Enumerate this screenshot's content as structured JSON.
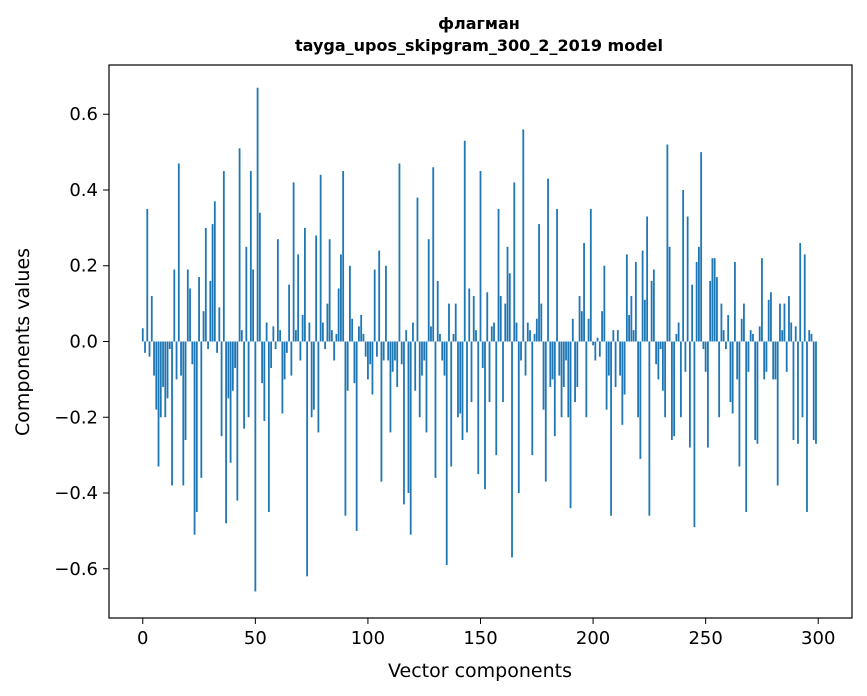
{
  "chart_data": {
    "type": "bar",
    "title": "флагман",
    "subtitle": "tayga_upos_skipgram_300_2_2019 model",
    "xlabel": "Vector components",
    "ylabel": "Components values",
    "xlim": [
      -15,
      315
    ],
    "ylim": [
      -0.73,
      0.73
    ],
    "xticks": [
      0,
      50,
      100,
      150,
      200,
      250,
      300
    ],
    "xtick_labels": [
      "0",
      "50",
      "100",
      "150",
      "200",
      "250",
      "300"
    ],
    "yticks": [
      -0.6,
      -0.4,
      -0.2,
      0.0,
      0.2,
      0.4,
      0.6
    ],
    "ytick_labels": [
      "−0.6",
      "−0.4",
      "−0.2",
      "0.0",
      "0.2",
      "0.4",
      "0.6"
    ],
    "grid": false,
    "legend": "none",
    "bar_color": "#1f77b4",
    "x": [
      0,
      1,
      2,
      3,
      4,
      5,
      6,
      7,
      8,
      9,
      10,
      11,
      12,
      13,
      14,
      15,
      16,
      17,
      18,
      19,
      20,
      21,
      22,
      23,
      24,
      25,
      26,
      27,
      28,
      29,
      30,
      31,
      32,
      33,
      34,
      35,
      36,
      37,
      38,
      39,
      40,
      41,
      42,
      43,
      44,
      45,
      46,
      47,
      48,
      49,
      50,
      51,
      52,
      53,
      54,
      55,
      56,
      57,
      58,
      59,
      60,
      61,
      62,
      63,
      64,
      65,
      66,
      67,
      68,
      69,
      70,
      71,
      72,
      73,
      74,
      75,
      76,
      77,
      78,
      79,
      80,
      81,
      82,
      83,
      84,
      85,
      86,
      87,
      88,
      89,
      90,
      91,
      92,
      93,
      94,
      95,
      96,
      97,
      98,
      99,
      100,
      101,
      102,
      103,
      104,
      105,
      106,
      107,
      108,
      109,
      110,
      111,
      112,
      113,
      114,
      115,
      116,
      117,
      118,
      119,
      120,
      121,
      122,
      123,
      124,
      125,
      126,
      127,
      128,
      129,
      130,
      131,
      132,
      133,
      134,
      135,
      136,
      137,
      138,
      139,
      140,
      141,
      142,
      143,
      144,
      145,
      146,
      147,
      148,
      149,
      150,
      151,
      152,
      153,
      154,
      155,
      156,
      157,
      158,
      159,
      160,
      161,
      162,
      163,
      164,
      165,
      166,
      167,
      168,
      169,
      170,
      171,
      172,
      173,
      174,
      175,
      176,
      177,
      178,
      179,
      180,
      181,
      182,
      183,
      184,
      185,
      186,
      187,
      188,
      189,
      190,
      191,
      192,
      193,
      194,
      195,
      196,
      197,
      198,
      199,
      200,
      201,
      202,
      203,
      204,
      205,
      206,
      207,
      208,
      209,
      210,
      211,
      212,
      213,
      214,
      215,
      216,
      217,
      218,
      219,
      220,
      221,
      222,
      223,
      224,
      225,
      226,
      227,
      228,
      229,
      230,
      231,
      232,
      233,
      234,
      235,
      236,
      237,
      238,
      239,
      240,
      241,
      242,
      243,
      244,
      245,
      246,
      247,
      248,
      249,
      250,
      251,
      252,
      253,
      254,
      255,
      256,
      257,
      258,
      259,
      260,
      261,
      262,
      263,
      264,
      265,
      266,
      267,
      268,
      269,
      270,
      271,
      272,
      273,
      274,
      275,
      276,
      277,
      278,
      279,
      280,
      281,
      282,
      283,
      284,
      285,
      286,
      287,
      288,
      289,
      290,
      291,
      292,
      293,
      294,
      295,
      296,
      297,
      298,
      299
    ],
    "values": [
      0.035,
      -0.03,
      0.35,
      -0.04,
      0.12,
      -0.09,
      -0.18,
      -0.33,
      -0.2,
      -0.12,
      -0.2,
      -0.15,
      -0.02,
      -0.38,
      0.19,
      -0.1,
      0.47,
      -0.09,
      -0.38,
      -0.26,
      0.19,
      0.14,
      -0.06,
      -0.51,
      -0.45,
      0.17,
      -0.36,
      0.08,
      0.3,
      -0.02,
      0.16,
      0.31,
      0.37,
      -0.03,
      0.09,
      -0.25,
      0.45,
      -0.48,
      -0.15,
      -0.32,
      -0.13,
      -0.07,
      -0.42,
      0.51,
      0.03,
      -0.23,
      0.25,
      -0.2,
      0.45,
      0.19,
      -0.66,
      0.67,
      0.34,
      -0.11,
      -0.21,
      0.05,
      -0.45,
      -0.07,
      0.04,
      -0.02,
      0.27,
      0.03,
      -0.19,
      -0.1,
      -0.03,
      0.15,
      -0.09,
      0.42,
      0.03,
      0.23,
      -0.05,
      0.07,
      0.3,
      -0.62,
      0.05,
      -0.2,
      -0.18,
      0.28,
      -0.24,
      0.44,
      0.05,
      -0.02,
      0.1,
      0.27,
      0.03,
      -0.05,
      0.02,
      0.14,
      0.23,
      0.45,
      -0.46,
      -0.13,
      0.2,
      0.06,
      -0.11,
      -0.5,
      0.04,
      0.07,
      0.02,
      -0.04,
      -0.1,
      -0.06,
      -0.14,
      0.19,
      -0.04,
      0.24,
      -0.37,
      -0.05,
      0.2,
      -0.05,
      -0.24,
      -0.08,
      -0.05,
      -0.12,
      0.47,
      -0.06,
      -0.43,
      0.03,
      -0.4,
      -0.51,
      0.05,
      -0.13,
      0.38,
      -0.2,
      -0.09,
      -0.05,
      -0.24,
      0.27,
      0.04,
      0.46,
      -0.36,
      0.16,
      0.02,
      -0.05,
      -0.09,
      -0.59,
      0.1,
      -0.33,
      0.02,
      0.1,
      -0.2,
      -0.19,
      -0.26,
      0.53,
      -0.24,
      0.14,
      -0.16,
      0.12,
      0.03,
      -0.35,
      0.45,
      -0.07,
      -0.39,
      0.13,
      -0.16,
      0.04,
      0.05,
      -0.3,
      0.35,
      0.12,
      -0.16,
      0.1,
      0.25,
      0.18,
      -0.57,
      0.42,
      0.05,
      -0.4,
      -0.05,
      0.56,
      -0.09,
      0.05,
      0.03,
      -0.3,
      0.02,
      0.06,
      0.31,
      0.1,
      -0.18,
      -0.37,
      0.43,
      -0.12,
      -0.1,
      -0.25,
      0.35,
      -0.09,
      -0.2,
      -0.12,
      -0.05,
      -0.2,
      -0.44,
      0.06,
      -0.16,
      -0.12,
      0.12,
      0.08,
      0.26,
      -0.2,
      0.06,
      0.35,
      -0.01,
      -0.05,
      0.01,
      -0.04,
      0.08,
      0.2,
      -0.18,
      -0.09,
      -0.46,
      0.03,
      -0.12,
      0.03,
      -0.09,
      -0.22,
      -0.14,
      0.23,
      0.07,
      0.12,
      0.03,
      0.21,
      -0.2,
      -0.31,
      0.24,
      0.11,
      0.33,
      -0.46,
      0.16,
      0.19,
      -0.06,
      -0.1,
      -0.02,
      -0.13,
      -0.2,
      0.52,
      0.25,
      -0.26,
      -0.25,
      0.02,
      0.05,
      -0.2,
      0.4,
      -0.08,
      0.33,
      -0.28,
      0.15,
      -0.49,
      0.21,
      0.25,
      0.5,
      -0.02,
      -0.08,
      -0.28,
      0.16,
      0.22,
      0.22,
      0.17,
      -0.2,
      0.1,
      0.03,
      -0.02,
      0.07,
      -0.16,
      -0.19,
      0.21,
      -0.1,
      -0.33,
      0.06,
      0.1,
      -0.45,
      -0.08,
      0.03,
      0.02,
      -0.26,
      -0.27,
      0.04,
      0.22,
      -0.1,
      -0.08,
      0.11,
      0.13,
      -0.1,
      -0.1,
      -0.38,
      0.1,
      0.03,
      0.1,
      -0.08,
      0.12,
      0.05,
      -0.26,
      0.04,
      -0.27,
      0.26,
      -0.2,
      0.23,
      -0.45,
      0.03,
      0.02,
      -0.26,
      -0.27
    ]
  }
}
